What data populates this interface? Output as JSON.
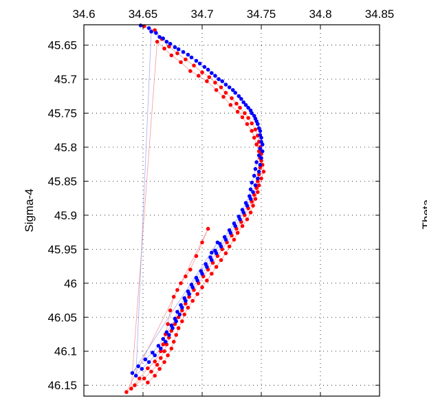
{
  "chart_data": {
    "type": "scatter",
    "title": "",
    "xlabel": "",
    "ylabel": "Sigma-4",
    "right_ylabel_fragment": "Theta",
    "x_axis_position": "top",
    "y_axis_reversed": true,
    "xlim": [
      34.6,
      34.85
    ],
    "ylim": [
      45.62,
      46.166
    ],
    "xticks": [
      "34.6",
      "34.65",
      "34.7",
      "34.75",
      "34.8",
      "34.85"
    ],
    "yticks": [
      "45.65",
      "45.7",
      "45.75",
      "45.8",
      "45.85",
      "45.9",
      "45.95",
      "46",
      "46.05",
      "46.1",
      "46.15"
    ],
    "grid": true,
    "grid_style": "dotted",
    "colors": {
      "series_a": "#ff0000",
      "series_b": "#0000ff",
      "series_b_lines": "#8f96f0",
      "series_a_lines": "#f08080",
      "axes": "#000000",
      "grid": "#000000"
    },
    "series": [
      {
        "color": "red",
        "points": [
          [
            34.651,
            45.622
          ],
          [
            34.66,
            45.628
          ],
          [
            34.666,
            45.641
          ],
          [
            34.672,
            45.652
          ],
          [
            34.679,
            45.662
          ],
          [
            34.686,
            45.671
          ],
          [
            34.693,
            45.68
          ],
          [
            34.7,
            45.69
          ],
          [
            34.706,
            45.697
          ],
          [
            34.711,
            45.705
          ],
          [
            34.716,
            45.712
          ],
          [
            34.72,
            45.72
          ],
          [
            34.725,
            45.728
          ],
          [
            34.729,
            45.736
          ],
          [
            34.732,
            45.742
          ],
          [
            34.736,
            45.75
          ],
          [
            34.739,
            45.757
          ],
          [
            34.742,
            45.765
          ],
          [
            34.745,
            45.774
          ],
          [
            34.747,
            45.783
          ],
          [
            34.748,
            45.792
          ],
          [
            34.749,
            45.8
          ],
          [
            34.75,
            45.81
          ],
          [
            34.75,
            45.82
          ],
          [
            34.749,
            45.83
          ],
          [
            34.748,
            45.84
          ],
          [
            34.747,
            45.85
          ],
          [
            34.746,
            45.86
          ],
          [
            34.744,
            45.87
          ],
          [
            34.742,
            45.88
          ],
          [
            34.739,
            45.89
          ],
          [
            34.736,
            45.9
          ],
          [
            34.733,
            45.91
          ],
          [
            34.729,
            45.92
          ],
          [
            34.725,
            45.93
          ],
          [
            34.721,
            45.94
          ],
          [
            34.717,
            45.95
          ],
          [
            34.713,
            45.96
          ],
          [
            34.709,
            45.97
          ],
          [
            34.705,
            45.98
          ],
          [
            34.701,
            45.99
          ],
          [
            34.697,
            46.0
          ],
          [
            34.693,
            46.01
          ],
          [
            34.689,
            46.02
          ],
          [
            34.686,
            46.03
          ],
          [
            34.683,
            46.04
          ],
          [
            34.68,
            46.05
          ],
          [
            34.677,
            46.06
          ],
          [
            34.674,
            46.07
          ],
          [
            34.672,
            46.08
          ],
          [
            34.67,
            46.09
          ],
          [
            34.668,
            46.1
          ],
          [
            34.665,
            46.11
          ],
          [
            34.662,
            46.12
          ],
          [
            34.657,
            46.13
          ],
          [
            34.651,
            46.14
          ],
          [
            34.643,
            46.15
          ],
          [
            34.636,
            46.16
          ],
          [
            34.705,
            45.92
          ],
          [
            34.7,
            45.94
          ],
          [
            34.695,
            45.96
          ],
          [
            34.69,
            45.98
          ],
          [
            34.686,
            45.99
          ],
          [
            34.682,
            46.0
          ],
          [
            34.679,
            46.01
          ],
          [
            34.676,
            46.02
          ],
          [
            34.673,
            46.04
          ],
          [
            34.671,
            46.06
          ],
          [
            34.669,
            46.075
          ],
          [
            34.667,
            46.09
          ],
          [
            34.665,
            46.1
          ],
          [
            34.66,
            46.115
          ],
          [
            34.654,
            46.125
          ],
          [
            34.647,
            46.14
          ],
          [
            34.64,
            46.155
          ],
          [
            34.662,
            45.645
          ],
          [
            34.668,
            45.655
          ],
          [
            34.674,
            45.665
          ],
          [
            34.682,
            45.675
          ],
          [
            34.69,
            45.688
          ],
          [
            34.697,
            45.695
          ],
          [
            34.704,
            45.703
          ],
          [
            34.712,
            45.716
          ],
          [
            34.718,
            45.726
          ],
          [
            34.724,
            45.738
          ],
          [
            34.73,
            45.748
          ],
          [
            34.734,
            45.756
          ],
          [
            34.738,
            45.766
          ],
          [
            34.742,
            45.776
          ],
          [
            34.744,
            45.786
          ],
          [
            34.746,
            45.796
          ],
          [
            34.748,
            45.806
          ],
          [
            34.749,
            45.816
          ],
          [
            34.751,
            45.826
          ],
          [
            34.752,
            45.836
          ],
          [
            34.75,
            45.846
          ],
          [
            34.748,
            45.856
          ],
          [
            34.747,
            45.866
          ],
          [
            34.745,
            45.876
          ],
          [
            34.743,
            45.886
          ],
          [
            34.741,
            45.896
          ],
          [
            34.738,
            45.906
          ],
          [
            34.734,
            45.916
          ],
          [
            34.73,
            45.926
          ],
          [
            34.727,
            45.936
          ],
          [
            34.723,
            45.946
          ],
          [
            34.72,
            45.956
          ],
          [
            34.716,
            45.966
          ],
          [
            34.712,
            45.976
          ],
          [
            34.708,
            45.986
          ],
          [
            34.704,
            45.996
          ],
          [
            34.7,
            46.006
          ],
          [
            34.696,
            46.016
          ],
          [
            34.692,
            46.026
          ],
          [
            34.688,
            46.036
          ],
          [
            34.685,
            46.046
          ],
          [
            34.683,
            46.056
          ],
          [
            34.68,
            46.066
          ],
          [
            34.678,
            46.076
          ],
          [
            34.676,
            46.086
          ],
          [
            34.674,
            46.096
          ],
          [
            34.671,
            46.106
          ],
          [
            34.668,
            46.116
          ],
          [
            34.664,
            46.126
          ],
          [
            34.66,
            46.136
          ],
          [
            34.654,
            46.146
          ]
        ]
      },
      {
        "color": "blue",
        "points": [
          [
            34.648,
            45.621
          ],
          [
            34.655,
            45.625
          ],
          [
            34.661,
            45.632
          ],
          [
            34.667,
            45.64
          ],
          [
            34.673,
            45.648
          ],
          [
            34.68,
            45.656
          ],
          [
            34.688,
            45.664
          ],
          [
            34.695,
            45.673
          ],
          [
            34.702,
            45.682
          ],
          [
            34.708,
            45.691
          ],
          [
            34.714,
            45.7
          ],
          [
            34.72,
            45.708
          ],
          [
            34.726,
            45.716
          ],
          [
            34.731,
            45.725
          ],
          [
            34.735,
            45.734
          ],
          [
            34.739,
            45.742
          ],
          [
            34.742,
            45.75
          ],
          [
            34.745,
            45.758
          ],
          [
            34.747,
            45.766
          ],
          [
            34.749,
            45.776
          ],
          [
            34.75,
            45.786
          ],
          [
            34.751,
            45.796
          ],
          [
            34.751,
            45.806
          ],
          [
            34.75,
            45.816
          ],
          [
            34.749,
            45.826
          ],
          [
            34.748,
            45.836
          ],
          [
            34.747,
            45.846
          ],
          [
            34.745,
            45.856
          ],
          [
            34.743,
            45.866
          ],
          [
            34.741,
            45.876
          ],
          [
            34.738,
            45.886
          ],
          [
            34.735,
            45.896
          ],
          [
            34.732,
            45.906
          ],
          [
            34.728,
            45.916
          ],
          [
            34.724,
            45.926
          ],
          [
            34.72,
            45.936
          ],
          [
            34.716,
            45.946
          ],
          [
            34.712,
            45.956
          ],
          [
            34.708,
            45.966
          ],
          [
            34.704,
            45.976
          ],
          [
            34.7,
            45.986
          ],
          [
            34.696,
            45.996
          ],
          [
            34.692,
            46.006
          ],
          [
            34.689,
            46.016
          ],
          [
            34.686,
            46.026
          ],
          [
            34.683,
            46.036
          ],
          [
            34.681,
            46.046
          ],
          [
            34.678,
            46.056
          ],
          [
            34.675,
            46.066
          ],
          [
            34.672,
            46.076
          ],
          [
            34.669,
            46.086
          ],
          [
            34.665,
            46.096
          ],
          [
            34.66,
            46.106
          ],
          [
            34.655,
            46.116
          ],
          [
            34.649,
            46.126
          ],
          [
            34.644,
            46.136
          ],
          [
            34.657,
            45.63
          ],
          [
            34.664,
            45.638
          ],
          [
            34.67,
            45.645
          ],
          [
            34.677,
            45.653
          ],
          [
            34.684,
            45.66
          ],
          [
            34.691,
            45.668
          ],
          [
            34.698,
            45.677
          ],
          [
            34.705,
            45.686
          ],
          [
            34.711,
            45.695
          ],
          [
            34.717,
            45.703
          ],
          [
            34.723,
            45.712
          ],
          [
            34.728,
            45.72
          ],
          [
            34.733,
            45.729
          ],
          [
            34.737,
            45.738
          ],
          [
            34.741,
            45.746
          ],
          [
            34.744,
            45.754
          ],
          [
            34.746,
            45.762
          ],
          [
            34.748,
            45.772
          ],
          [
            34.749,
            45.782
          ],
          [
            34.75,
            45.792
          ],
          [
            34.749,
            45.802
          ],
          [
            34.748,
            45.812
          ],
          [
            34.746,
            45.822
          ],
          [
            34.745,
            45.832
          ],
          [
            34.744,
            45.842
          ],
          [
            34.742,
            45.852
          ],
          [
            34.741,
            45.862
          ],
          [
            34.74,
            45.872
          ],
          [
            34.737,
            45.882
          ],
          [
            34.734,
            45.892
          ],
          [
            34.731,
            45.902
          ],
          [
            34.727,
            45.912
          ],
          [
            34.723,
            45.922
          ],
          [
            34.719,
            45.932
          ],
          [
            34.715,
            45.942
          ],
          [
            34.711,
            45.952
          ],
          [
            34.707,
            45.962
          ],
          [
            34.703,
            45.972
          ],
          [
            34.699,
            45.982
          ],
          [
            34.695,
            45.992
          ],
          [
            34.691,
            46.002
          ],
          [
            34.688,
            46.012
          ],
          [
            34.685,
            46.022
          ],
          [
            34.682,
            46.032
          ],
          [
            34.679,
            46.042
          ],
          [
            34.677,
            46.052
          ],
          [
            34.674,
            46.062
          ],
          [
            34.67,
            46.072
          ],
          [
            34.667,
            46.082
          ],
          [
            34.663,
            46.092
          ],
          [
            34.658,
            46.102
          ],
          [
            34.652,
            46.112
          ],
          [
            34.646,
            46.122
          ],
          [
            34.641,
            46.132
          ],
          [
            34.713,
            45.94
          ],
          [
            34.708,
            45.955
          ]
        ]
      }
    ]
  }
}
